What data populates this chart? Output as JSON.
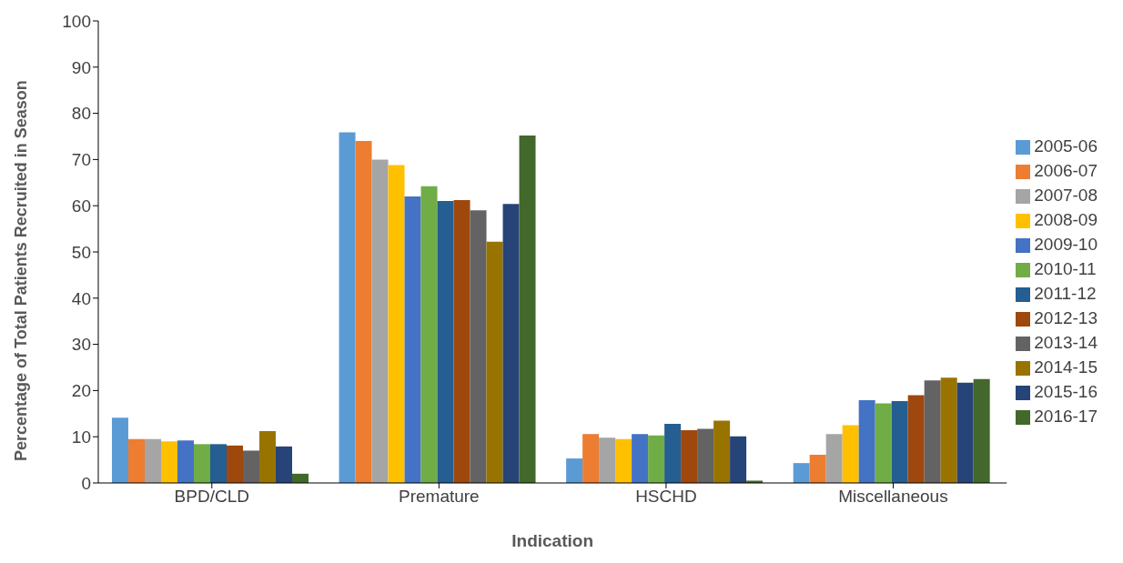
{
  "chart_data": {
    "type": "bar",
    "xlabel": "Indication",
    "ylabel": "Percentage of Total Patients Recruited in Season",
    "categories": [
      "BPD/CLD",
      "Premature",
      "HSCHD",
      "Miscellaneous"
    ],
    "ylim": [
      0,
      100
    ],
    "yticks": [
      0,
      10,
      20,
      30,
      40,
      50,
      60,
      70,
      80,
      90,
      100
    ],
    "grid": false,
    "legend": "right",
    "series": [
      {
        "name": "2005-06",
        "color": "#5b9bd5",
        "values": [
          14.1,
          75.9,
          5.3,
          4.3
        ]
      },
      {
        "name": "2006-07",
        "color": "#ed7d31",
        "values": [
          9.5,
          74,
          10.6,
          6.1
        ]
      },
      {
        "name": "2007-08",
        "color": "#a5a5a5",
        "values": [
          9.5,
          70,
          9.8,
          10.6
        ]
      },
      {
        "name": "2008-09",
        "color": "#ffc000",
        "values": [
          9,
          68.8,
          9.5,
          12.5
        ]
      },
      {
        "name": "2009-10",
        "color": "#4472c4",
        "values": [
          9.2,
          62,
          10.6,
          17.9
        ]
      },
      {
        "name": "2010-11",
        "color": "#70ad47",
        "values": [
          8.4,
          64.2,
          10.3,
          17.2
        ]
      },
      {
        "name": "2011-12",
        "color": "#255e91",
        "values": [
          8.4,
          61,
          12.8,
          17.7
        ]
      },
      {
        "name": "2012-13",
        "color": "#9e480e",
        "values": [
          8.1,
          61.2,
          11.4,
          19
        ]
      },
      {
        "name": "2013-14",
        "color": "#636363",
        "values": [
          7,
          59,
          11.7,
          22.2
        ]
      },
      {
        "name": "2014-15",
        "color": "#997300",
        "values": [
          11.2,
          52.2,
          13.5,
          22.8
        ]
      },
      {
        "name": "2015-16",
        "color": "#264478",
        "values": [
          7.9,
          60.4,
          10.1,
          21.7
        ]
      },
      {
        "name": "2016-17",
        "color": "#43682b",
        "values": [
          2,
          75.2,
          0.5,
          22.5
        ]
      }
    ]
  }
}
